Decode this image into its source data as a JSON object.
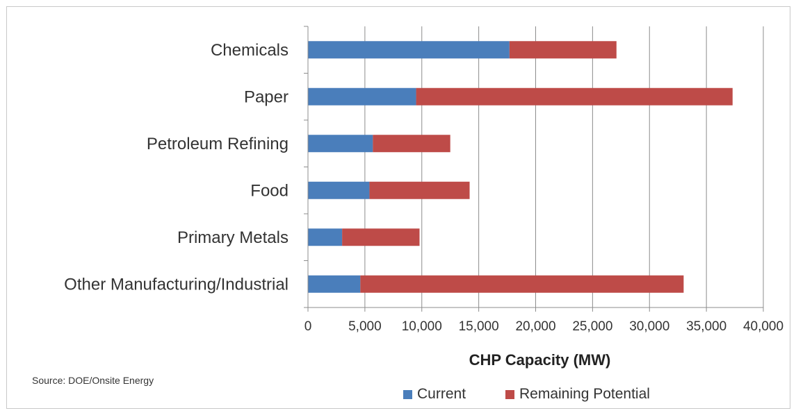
{
  "chart_data": {
    "type": "bar",
    "orientation": "horizontal",
    "stacked": true,
    "categories": [
      "Chemicals",
      "Paper",
      "Petroleum Refining",
      "Food",
      "Primary Metals",
      "Other Manufacturing/Industrial"
    ],
    "series": [
      {
        "name": "Current",
        "color": "#4a7ebb",
        "values": [
          17700,
          9500,
          5700,
          5400,
          3000,
          4600
        ]
      },
      {
        "name": "Remaining Potential",
        "color": "#be4b48",
        "values": [
          9400,
          27800,
          6800,
          8800,
          6800,
          28400
        ]
      }
    ],
    "xlabel": "CHP Capacity (MW)",
    "xlim": [
      0,
      40000
    ],
    "xticks": [
      "0",
      "5,000",
      "10,000",
      "15,000",
      "20,000",
      "25,000",
      "30,000",
      "35,000",
      "40,000"
    ],
    "grid": "vertical",
    "legend_position": "bottom"
  },
  "source_note": "Source: DOE/Onsite Energy"
}
